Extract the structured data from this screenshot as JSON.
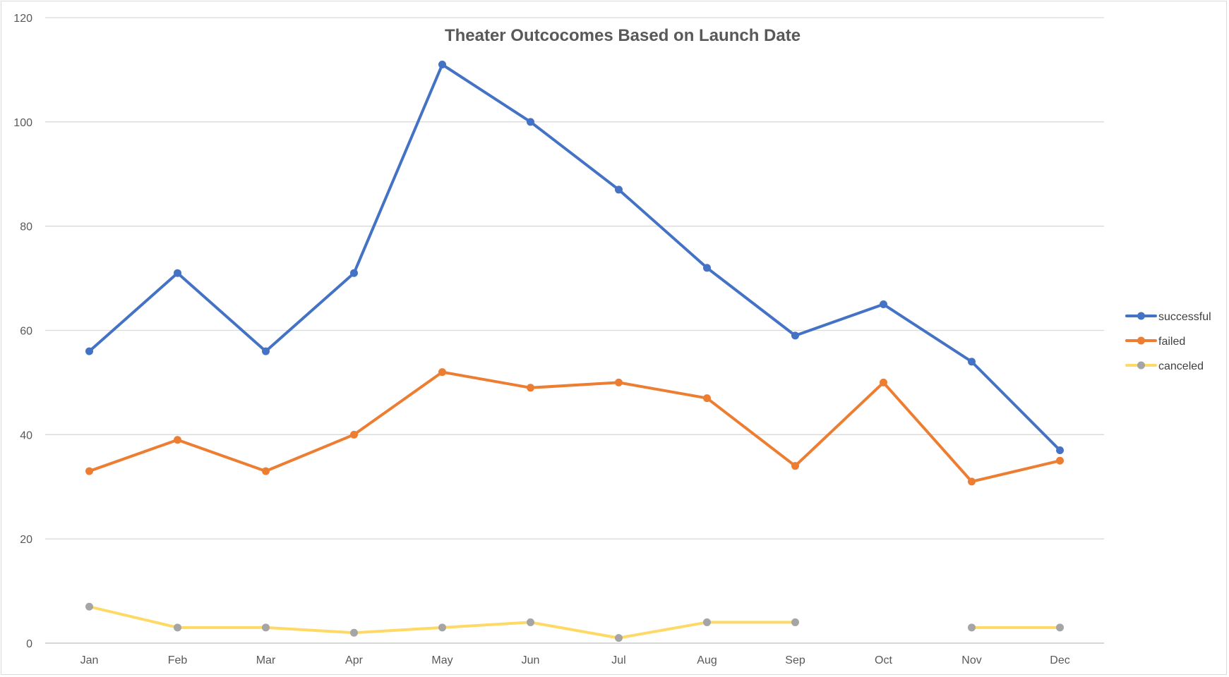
{
  "chart_data": {
    "type": "line",
    "title": "Theater Outcocomes Based on Launch Date",
    "xlabel": "",
    "ylabel": "",
    "categories": [
      "Jan",
      "Feb",
      "Mar",
      "Apr",
      "May",
      "Jun",
      "Jul",
      "Aug",
      "Sep",
      "Oct",
      "Nov",
      "Dec"
    ],
    "ylim": [
      0,
      120
    ],
    "yticks": [
      0,
      20,
      40,
      60,
      80,
      100,
      120
    ],
    "grid": true,
    "legend_position": "right",
    "series": [
      {
        "name": "successful",
        "color": "#4472c4",
        "marker_color": "#4472c4",
        "values": [
          56,
          71,
          56,
          71,
          111,
          100,
          87,
          72,
          59,
          65,
          54,
          37
        ]
      },
      {
        "name": "failed",
        "color": "#ed7d31",
        "marker_color": "#ed7d31",
        "values": [
          33,
          39,
          33,
          40,
          52,
          49,
          50,
          47,
          34,
          50,
          31,
          35
        ]
      },
      {
        "name": "canceled",
        "color": "#ffd966",
        "marker_color": "#a5a5a5",
        "values": [
          7,
          3,
          3,
          2,
          3,
          4,
          1,
          4,
          4,
          null,
          3,
          3
        ]
      }
    ]
  }
}
